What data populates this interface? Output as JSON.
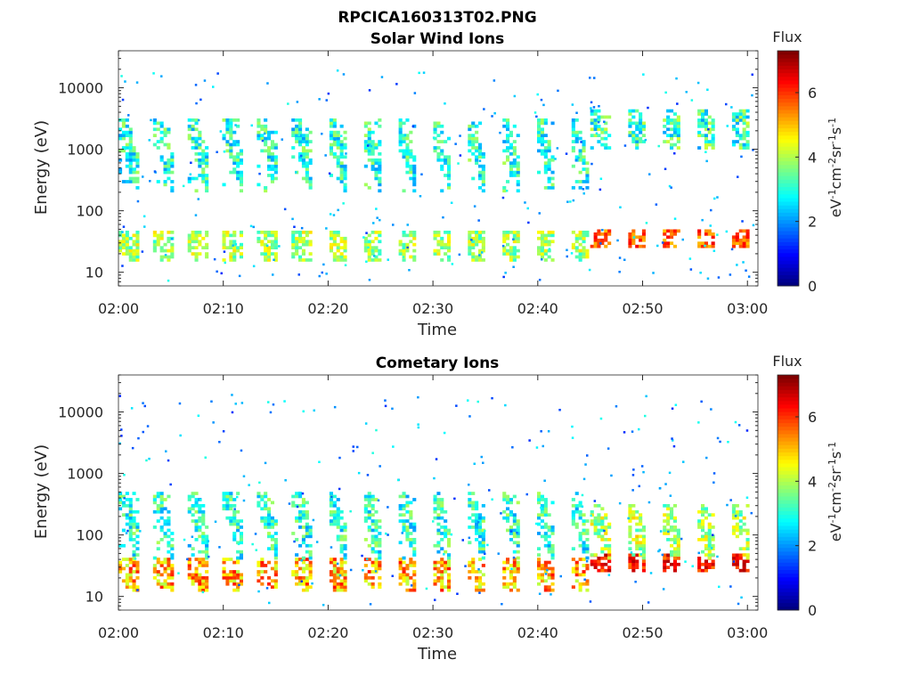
{
  "figure": {
    "title": "RPCICA160313T02.PNG"
  },
  "chart_data": [
    {
      "type": "heatmap",
      "title": "Solar Wind Ions",
      "xlabel": "Time",
      "ylabel": "Energy (eV)",
      "x_ticks": [
        "02:00",
        "02:10",
        "02:20",
        "02:30",
        "02:40",
        "02:50",
        "03:00"
      ],
      "y_ticks": [
        "10",
        "100",
        "1000",
        "10000"
      ],
      "y_scale": "log",
      "xlim": [
        "02:00",
        "03:00"
      ],
      "ylim": [
        6,
        40000
      ],
      "colorbar": {
        "title": "Flux",
        "label": "eV-1cm-2sr-1s-1",
        "ticks": [
          "0",
          "2",
          "4",
          "6"
        ],
        "range": [
          0,
          7.3
        ],
        "colormap": "jet"
      },
      "y_values": "log10 energy bins 0.8 to 4.6, step 0.05",
      "pattern": [
        {
          "time_range": [
            "02:00",
            "02:45"
          ],
          "energy_range_eV": [
            15,
            45
          ],
          "flux_range": [
            3,
            4.8
          ],
          "period_min": 3.3
        },
        {
          "time_range": [
            "02:00",
            "02:45"
          ],
          "energy_range_eV": [
            200,
            3000
          ],
          "flux_range": [
            2,
            4
          ],
          "period_min": 3.3
        },
        {
          "time_range": [
            "02:45",
            "03:00"
          ],
          "energy_range_eV": [
            25,
            45
          ],
          "flux_range": [
            5,
            6.5
          ],
          "period_min": 3.3
        },
        {
          "time_range": [
            "02:45",
            "03:00"
          ],
          "energy_range_eV": [
            1000,
            4000
          ],
          "flux_range": [
            2,
            4.3
          ],
          "period_min": 3.3
        }
      ]
    },
    {
      "type": "heatmap",
      "title": "Cometary Ions",
      "xlabel": "Time",
      "ylabel": "Energy (eV)",
      "x_ticks": [
        "02:00",
        "02:10",
        "02:20",
        "02:30",
        "02:40",
        "02:50",
        "03:00"
      ],
      "y_ticks": [
        "10",
        "100",
        "1000",
        "10000"
      ],
      "y_scale": "log",
      "xlim": [
        "02:00",
        "03:00"
      ],
      "ylim": [
        6,
        40000
      ],
      "colorbar": {
        "title": "Flux",
        "label": "eV-1cm-2sr-1s-1",
        "ticks": [
          "0",
          "2",
          "4",
          "6"
        ],
        "range": [
          0,
          7.3
        ],
        "colormap": "jet"
      },
      "pattern": [
        {
          "time_range": [
            "02:00",
            "02:45"
          ],
          "energy_range_eV": [
            12,
            40
          ],
          "flux_range": [
            4,
            6.3
          ],
          "period_min": 3.3
        },
        {
          "time_range": [
            "02:00",
            "02:45"
          ],
          "energy_range_eV": [
            40,
            500
          ],
          "flux_range": [
            2,
            4
          ],
          "period_min": 3.3
        },
        {
          "time_range": [
            "02:45",
            "03:00"
          ],
          "energy_range_eV": [
            25,
            45
          ],
          "flux_range": [
            5.5,
            7
          ],
          "period_min": 3.3
        },
        {
          "time_range": [
            "02:45",
            "03:00"
          ],
          "energy_range_eV": [
            40,
            300
          ],
          "flux_range": [
            3,
            5
          ],
          "period_min": 3.3
        }
      ]
    }
  ]
}
